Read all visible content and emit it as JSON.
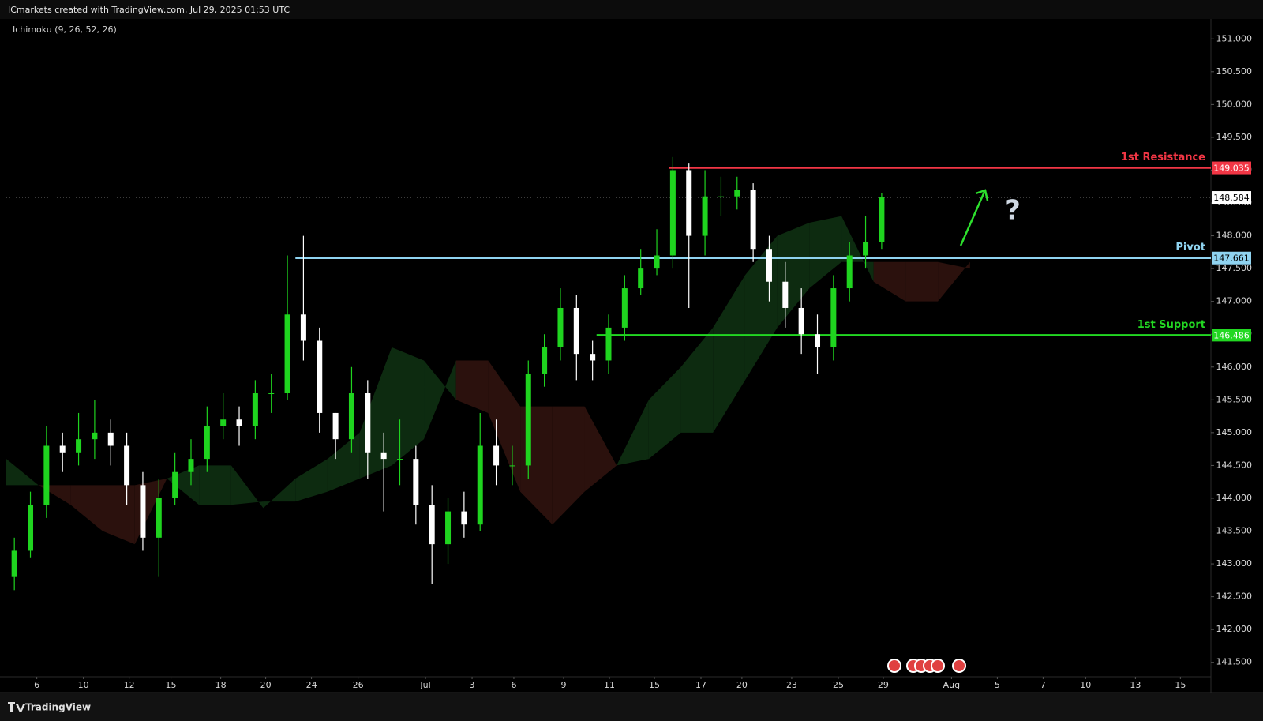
{
  "header": "ICmarkets created with TradingView.com, Jul 29, 2025 01:53 UTC",
  "footer": "TradingView",
  "chart_data": {
    "type": "candlestick",
    "indicator": "Ichimoku (9, 26, 52, 26)",
    "annotation": "?",
    "up_color": "#1fd41f",
    "down_color": "#ffffff",
    "xlim": [
      0,
      150
    ],
    "ylim": [
      141.28,
      151.28
    ],
    "xticks": [
      {
        "value": 3.8,
        "label": "6"
      },
      {
        "value": 9.6,
        "label": "10"
      },
      {
        "value": 15.3,
        "label": "12"
      },
      {
        "value": 20.5,
        "label": "15"
      },
      {
        "value": 26.7,
        "label": "18"
      },
      {
        "value": 32.3,
        "label": "20"
      },
      {
        "value": 38.0,
        "label": "24"
      },
      {
        "value": 43.8,
        "label": "26"
      },
      {
        "value": 52.2,
        "label": "Jul"
      },
      {
        "value": 58.0,
        "label": "3"
      },
      {
        "value": 63.2,
        "label": "6"
      },
      {
        "value": 69.4,
        "label": "9"
      },
      {
        "value": 75.1,
        "label": "11"
      },
      {
        "value": 80.7,
        "label": "15"
      },
      {
        "value": 86.5,
        "label": "17"
      },
      {
        "value": 91.6,
        "label": "20"
      },
      {
        "value": 97.8,
        "label": "23"
      },
      {
        "value": 103.6,
        "label": "25"
      },
      {
        "value": 109.2,
        "label": "29"
      },
      {
        "value": 117.7,
        "label": "Aug"
      },
      {
        "value": 123.4,
        "label": "5"
      },
      {
        "value": 129.1,
        "label": "7"
      },
      {
        "value": 134.4,
        "label": "10"
      },
      {
        "value": 140.6,
        "label": "13"
      },
      {
        "value": 146.2,
        "label": "15"
      }
    ],
    "yticks": [
      {
        "value": 141.5,
        "label": "141.500"
      },
      {
        "value": 142,
        "label": "142.000"
      },
      {
        "value": 142.5,
        "label": "142.500"
      },
      {
        "value": 143,
        "label": "143.000"
      },
      {
        "value": 143.5,
        "label": "143.500"
      },
      {
        "value": 144,
        "label": "144.000"
      },
      {
        "value": 144.5,
        "label": "144.500"
      },
      {
        "value": 145,
        "label": "145.000"
      },
      {
        "value": 145.5,
        "label": "145.500"
      },
      {
        "value": 146,
        "label": "146.000"
      },
      {
        "value": 146.5,
        "label": "146.500"
      },
      {
        "value": 147,
        "label": "147.000"
      },
      {
        "value": 147.5,
        "label": "147.500"
      },
      {
        "value": 148,
        "label": "148.000"
      },
      {
        "value": 148.5,
        "label": "148.500"
      },
      {
        "value": 149,
        "label": "149.000"
      },
      {
        "value": 149.5,
        "label": "149.500"
      },
      {
        "value": 150,
        "label": "150.000"
      },
      {
        "value": 150.5,
        "label": "150.500"
      },
      {
        "value": 151,
        "label": "151.000"
      }
    ],
    "x": [
      1,
      3,
      5,
      7,
      9,
      11,
      13,
      15,
      17,
      19,
      21,
      23,
      25,
      27,
      29,
      31,
      33,
      35,
      37,
      39,
      41,
      43,
      45,
      47,
      49,
      51,
      53,
      55,
      57,
      59,
      61,
      63,
      65,
      67,
      69,
      71,
      73,
      75,
      77,
      79,
      81,
      83,
      85,
      87,
      89,
      91,
      93,
      95,
      97,
      99,
      101,
      103,
      105,
      107,
      109
    ],
    "open": [
      142.8,
      143.2,
      143.9,
      144.8,
      144.7,
      144.9,
      145.0,
      144.8,
      144.2,
      143.4,
      144.0,
      144.4,
      144.6,
      145.1,
      145.2,
      145.1,
      145.6,
      145.6,
      146.8,
      146.4,
      145.3,
      144.9,
      145.6,
      144.7,
      144.6,
      144.6,
      143.9,
      143.3,
      143.8,
      143.6,
      144.8,
      144.5,
      144.5,
      145.9,
      146.3,
      146.9,
      146.2,
      146.1,
      146.6,
      147.2,
      147.5,
      147.7,
      149.0,
      148.0,
      148.6,
      148.6,
      148.7,
      147.8,
      147.3,
      146.9,
      146.5,
      146.3,
      147.2,
      147.7,
      147.9
    ],
    "high": [
      143.4,
      144.1,
      145.1,
      145.0,
      145.3,
      145.5,
      145.2,
      145.0,
      144.4,
      144.3,
      144.7,
      144.9,
      145.4,
      145.6,
      145.4,
      145.8,
      145.9,
      147.7,
      148.0,
      146.6,
      145.3,
      146.0,
      145.8,
      145.0,
      145.2,
      144.8,
      144.2,
      144.0,
      144.1,
      145.3,
      145.2,
      144.8,
      146.1,
      146.5,
      147.2,
      147.1,
      146.4,
      146.8,
      147.4,
      147.8,
      148.1,
      149.2,
      149.1,
      149.0,
      148.9,
      148.9,
      148.8,
      148.0,
      147.6,
      147.2,
      146.8,
      147.4,
      147.9,
      148.3,
      148.65
    ],
    "low": [
      142.6,
      143.1,
      143.7,
      144.4,
      144.5,
      144.6,
      144.5,
      143.9,
      143.2,
      142.8,
      143.9,
      144.2,
      144.4,
      144.9,
      144.8,
      144.9,
      145.3,
      145.5,
      146.1,
      145.0,
      144.6,
      144.7,
      144.3,
      143.8,
      144.2,
      143.6,
      142.7,
      143.0,
      143.4,
      143.5,
      144.2,
      144.2,
      144.3,
      145.7,
      146.1,
      145.8,
      145.8,
      145.9,
      146.4,
      147.1,
      147.4,
      147.5,
      146.9,
      147.7,
      148.3,
      148.4,
      147.6,
      147.0,
      146.6,
      146.2,
      145.9,
      146.1,
      147.0,
      147.5,
      147.8
    ],
    "close": [
      143.2,
      143.9,
      144.8,
      144.7,
      144.9,
      145.0,
      144.8,
      144.2,
      143.4,
      144.0,
      144.4,
      144.6,
      145.1,
      145.2,
      145.1,
      145.6,
      145.6,
      146.8,
      146.4,
      145.3,
      144.9,
      145.6,
      144.7,
      144.6,
      144.6,
      143.9,
      143.3,
      143.8,
      143.6,
      144.8,
      144.5,
      144.5,
      145.9,
      146.3,
      146.9,
      146.2,
      146.1,
      146.6,
      147.2,
      147.5,
      147.7,
      149.0,
      148.0,
      148.6,
      148.6,
      148.7,
      147.8,
      147.3,
      146.9,
      146.5,
      146.3,
      147.2,
      147.7,
      147.9,
      148.584
    ],
    "cloud": {
      "bull_color": "#0d2b10",
      "bear_color": "#2b110d",
      "x": [
        0,
        4,
        8,
        12,
        16,
        20,
        24,
        28,
        32,
        36,
        40,
        44,
        48,
        52,
        56,
        60,
        64,
        68,
        72,
        76,
        80,
        84,
        88,
        92,
        96,
        100,
        104,
        108,
        112,
        116,
        120
      ],
      "span_a": [
        144.6,
        144.2,
        143.9,
        143.5,
        143.3,
        144.3,
        144.5,
        144.5,
        143.85,
        144.3,
        144.6,
        145.0,
        146.3,
        146.1,
        145.5,
        145.3,
        144.1,
        143.6,
        144.1,
        144.5,
        145.5,
        146.0,
        146.6,
        147.4,
        148.0,
        148.2,
        148.3,
        147.3,
        147.0,
        147.0,
        147.6
      ],
      "span_b": [
        144.2,
        144.2,
        144.2,
        144.2,
        144.2,
        144.3,
        143.9,
        143.9,
        143.95,
        143.95,
        144.1,
        144.3,
        144.5,
        144.9,
        146.1,
        146.1,
        145.4,
        145.4,
        145.4,
        144.5,
        144.6,
        145.0,
        145.0,
        145.8,
        146.6,
        147.2,
        147.6,
        147.6,
        147.6,
        147.6,
        147.5
      ]
    },
    "levels": [
      {
        "label": "1st Resistance",
        "value": 149.035,
        "color": "#f23645",
        "x_start": 82.5
      },
      {
        "label": "Pivot",
        "value": 147.661,
        "color": "#8fd3f0",
        "x_start": 36.0
      },
      {
        "label": "1st Support",
        "value": 146.486,
        "color": "#22d822",
        "x_start": 73.5
      }
    ]
  }
}
